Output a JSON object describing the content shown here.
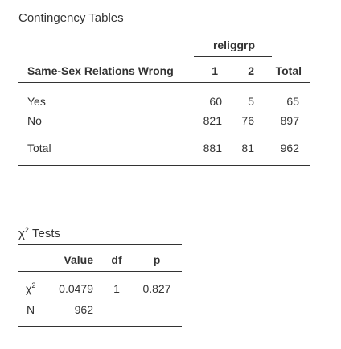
{
  "contingency": {
    "title": "Contingency Tables",
    "group_header": "religgrp",
    "row_var_header": "Same-Sex Relations Wrong",
    "col_headers": [
      "1",
      "2",
      "Total"
    ],
    "rows": [
      {
        "label": "Yes",
        "values": [
          "60",
          "5",
          "65"
        ]
      },
      {
        "label": "No",
        "values": [
          "821",
          "76",
          "897"
        ]
      }
    ],
    "total_row": {
      "label": "Total",
      "values": [
        "881",
        "81",
        "962"
      ]
    }
  },
  "chi_tests": {
    "title_symbol": "χ",
    "title_sup": "2",
    "title_text": " Tests",
    "col_headers": [
      "Value",
      "df",
      "p"
    ],
    "rows": [
      {
        "label_symbol": "χ",
        "label_sup": "2",
        "values": [
          "0.0479",
          "1",
          "0.827"
        ]
      },
      {
        "label": "N",
        "values": [
          "962",
          "",
          ""
        ]
      }
    ]
  }
}
